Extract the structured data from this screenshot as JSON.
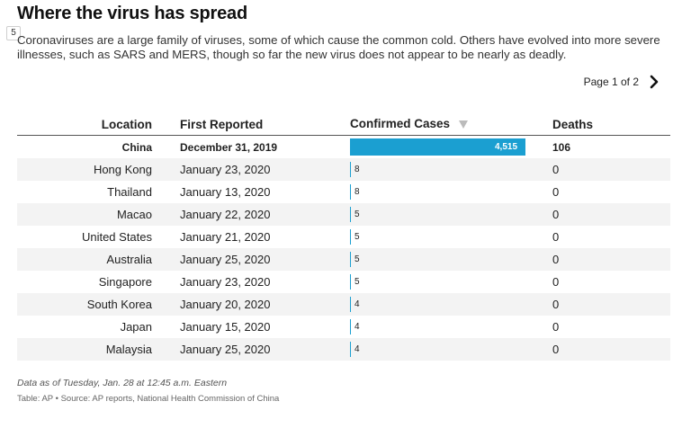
{
  "badge": "5",
  "title": "Where the virus has spread",
  "description": "Coronaviruses are a large family of viruses, some of which cause the common cold. Others have evolved into more severe illnesses, such as SARS and MERS, though so far the new virus does not appear to be nearly as deadly.",
  "pager": {
    "label": "Page 1 of 2",
    "next_icon": "chevron-right-icon"
  },
  "colors": {
    "bar": "#1b9fd1",
    "stripe": "#f3f3f3",
    "header_rule": "#555555"
  },
  "table": {
    "headers": {
      "location": "Location",
      "first_reported": "First Reported",
      "cases": "Confirmed Cases",
      "deaths": "Deaths"
    },
    "sort_icon": "sort-down-triangle-icon",
    "max_cases": 4515,
    "rows": [
      {
        "location": "China",
        "first_reported": "December 31, 2019",
        "cases": 4515,
        "cases_label": "4,515",
        "deaths": "106"
      },
      {
        "location": "Hong Kong",
        "first_reported": "January 23, 2020",
        "cases": 8,
        "cases_label": "8",
        "deaths": "0"
      },
      {
        "location": "Thailand",
        "first_reported": "January 13, 2020",
        "cases": 8,
        "cases_label": "8",
        "deaths": "0"
      },
      {
        "location": "Macao",
        "first_reported": "January 22, 2020",
        "cases": 5,
        "cases_label": "5",
        "deaths": "0"
      },
      {
        "location": "United States",
        "first_reported": "January 21, 2020",
        "cases": 5,
        "cases_label": "5",
        "deaths": "0"
      },
      {
        "location": "Australia",
        "first_reported": "January 25, 2020",
        "cases": 5,
        "cases_label": "5",
        "deaths": "0"
      },
      {
        "location": "Singapore",
        "first_reported": "January 23, 2020",
        "cases": 5,
        "cases_label": "5",
        "deaths": "0"
      },
      {
        "location": "South Korea",
        "first_reported": "January 20, 2020",
        "cases": 4,
        "cases_label": "4",
        "deaths": "0"
      },
      {
        "location": "Japan",
        "first_reported": "January 15, 2020",
        "cases": 4,
        "cases_label": "4",
        "deaths": "0"
      },
      {
        "location": "Malaysia",
        "first_reported": "January 25, 2020",
        "cases": 4,
        "cases_label": "4",
        "deaths": "0"
      }
    ]
  },
  "note": "Data as of Tuesday, Jan. 28 at 12:45 a.m. Eastern",
  "source": "Table: AP • Source: AP reports, National Health Commission of China"
}
